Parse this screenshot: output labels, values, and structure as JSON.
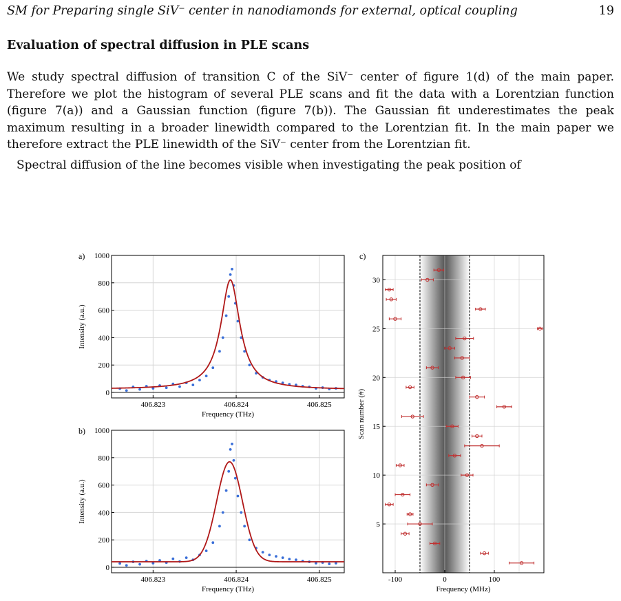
{
  "header": {
    "running_title": "SM for Preparing single SiV⁻ center in nanodiamonds for external, optical coupling",
    "page_number": "19"
  },
  "section_title": "Evaluation of spectral diffusion in PLE scans",
  "paragraphs": [
    "We study spectral diffusion of transition C of the SiV⁻ center of figure 1(d) of the main paper. Therefore we plot the histogram of several PLE scans and fit the data with a Lorentzian function (figure 7(a)) and a Gaussian function (figure 7(b)). The Gaussian fit underestimates the peak maximum resulting in a broader linewidth compared to the Lorentzian fit. In the main paper we therefore extract the PLE linewidth of the SiV⁻ center from the Lorentzian fit.",
    "Spectral diffusion of the line becomes visible when investigating the peak position of"
  ],
  "colors": {
    "data_points": "#3a6fd8",
    "fit_line": "#b01818",
    "markers": "#c03030"
  },
  "chart_data": [
    {
      "panel": "a)",
      "type": "scatter",
      "xlabel": "Frequency (THz)",
      "ylabel": "Intensity (a.u.)",
      "xlim": [
        406.8225,
        406.8253
      ],
      "ylim": [
        -40,
        1000
      ],
      "xticks": [
        "406.823",
        "406.824",
        "406.825"
      ],
      "xtick_values": [
        406.823,
        406.824,
        406.825
      ],
      "yticks": [
        "0",
        "200",
        "400",
        "600",
        "800",
        "1000"
      ],
      "ytick_values": [
        0,
        200,
        400,
        600,
        800,
        1000
      ],
      "fit": {
        "kind": "lorentzian",
        "x0": 406.82393,
        "fwhm": 0.00028,
        "amplitude": 800,
        "offset": 20,
        "slope": 3
      },
      "series": [
        {
          "values": [
            [
              406.8226,
              28
            ],
            [
              406.82268,
              14
            ],
            [
              406.82276,
              40
            ],
            [
              406.82284,
              22
            ],
            [
              406.82292,
              45
            ],
            [
              406.823,
              30
            ],
            [
              406.82308,
              50
            ],
            [
              406.82316,
              34
            ],
            [
              406.82324,
              62
            ],
            [
              406.82332,
              42
            ],
            [
              406.8234,
              70
            ],
            [
              406.82348,
              55
            ],
            [
              406.82356,
              90
            ],
            [
              406.82364,
              120
            ],
            [
              406.82372,
              180
            ],
            [
              406.8238,
              300
            ],
            [
              406.82384,
              400
            ],
            [
              406.82388,
              560
            ],
            [
              406.82391,
              700
            ],
            [
              406.82393,
              860
            ],
            [
              406.82395,
              900
            ],
            [
              406.82397,
              780
            ],
            [
              406.82399,
              650
            ],
            [
              406.82402,
              520
            ],
            [
              406.82406,
              400
            ],
            [
              406.8241,
              300
            ],
            [
              406.82416,
              200
            ],
            [
              406.82424,
              140
            ],
            [
              406.82432,
              110
            ],
            [
              406.8244,
              90
            ],
            [
              406.82448,
              80
            ],
            [
              406.82456,
              70
            ],
            [
              406.82464,
              60
            ],
            [
              406.82472,
              55
            ],
            [
              406.8248,
              45
            ],
            [
              406.82488,
              40
            ],
            [
              406.82496,
              30
            ],
            [
              406.82504,
              35
            ],
            [
              406.82512,
              25
            ],
            [
              406.8252,
              30
            ]
          ]
        }
      ]
    },
    {
      "panel": "b)",
      "type": "scatter",
      "xlabel": "Frequency (THz)",
      "ylabel": "Intensity (a.u.)",
      "xlim": [
        406.8225,
        406.8253
      ],
      "ylim": [
        -40,
        1000
      ],
      "xticks": [
        "406.823",
        "406.824",
        "406.825"
      ],
      "xtick_values": [
        406.823,
        406.824,
        406.825
      ],
      "yticks": [
        "0",
        "200",
        "400",
        "600",
        "800",
        "1000"
      ],
      "ytick_values": [
        0,
        200,
        400,
        600,
        800,
        1000
      ],
      "fit": {
        "kind": "gaussian",
        "x0": 406.82392,
        "sigma": 0.000155,
        "amplitude": 730,
        "offset": 40,
        "slope": 0
      },
      "series": [
        {
          "values": [
            [
              406.8226,
              28
            ],
            [
              406.82268,
              14
            ],
            [
              406.82276,
              40
            ],
            [
              406.82284,
              22
            ],
            [
              406.82292,
              45
            ],
            [
              406.823,
              30
            ],
            [
              406.82308,
              50
            ],
            [
              406.82316,
              34
            ],
            [
              406.82324,
              62
            ],
            [
              406.82332,
              42
            ],
            [
              406.8234,
              70
            ],
            [
              406.82348,
              55
            ],
            [
              406.82356,
              90
            ],
            [
              406.82364,
              120
            ],
            [
              406.82372,
              180
            ],
            [
              406.8238,
              300
            ],
            [
              406.82384,
              400
            ],
            [
              406.82388,
              560
            ],
            [
              406.82391,
              700
            ],
            [
              406.82393,
              860
            ],
            [
              406.82395,
              900
            ],
            [
              406.82397,
              780
            ],
            [
              406.82399,
              650
            ],
            [
              406.82402,
              520
            ],
            [
              406.82406,
              400
            ],
            [
              406.8241,
              300
            ],
            [
              406.82416,
              200
            ],
            [
              406.82424,
              140
            ],
            [
              406.82432,
              110
            ],
            [
              406.8244,
              90
            ],
            [
              406.82448,
              80
            ],
            [
              406.82456,
              70
            ],
            [
              406.82464,
              60
            ],
            [
              406.82472,
              55
            ],
            [
              406.8248,
              45
            ],
            [
              406.82488,
              40
            ],
            [
              406.82496,
              30
            ],
            [
              406.82504,
              35
            ],
            [
              406.82512,
              25
            ],
            [
              406.8252,
              30
            ]
          ]
        }
      ]
    },
    {
      "panel": "c)",
      "type": "scatter",
      "xlabel": "Frequency (MHz)",
      "ylabel": "Scan number (#)",
      "xlim": [
        -125,
        200
      ],
      "ylim": [
        0,
        32.5
      ],
      "xticks": [
        "-100",
        "0",
        "100"
      ],
      "xtick_values": [
        -100,
        0,
        100
      ],
      "yticks": [
        "5",
        "10",
        "15",
        "20",
        "25",
        "30"
      ],
      "ytick_values": [
        5,
        10,
        15,
        20,
        25,
        30
      ],
      "band": {
        "low": -50,
        "high": 50
      },
      "series": [
        {
          "values": [
            {
              "scan": 1,
              "x": 155,
              "err": 25
            },
            {
              "scan": 2,
              "x": 80,
              "err": 8
            },
            {
              "scan": 3,
              "x": -20,
              "err": 10
            },
            {
              "scan": 4,
              "x": -80,
              "err": 8
            },
            {
              "scan": 5,
              "x": -50,
              "err": 25
            },
            {
              "scan": 6,
              "x": -70,
              "err": 6
            },
            {
              "scan": 7,
              "x": -112,
              "err": 8
            },
            {
              "scan": 8,
              "x": -85,
              "err": 15
            },
            {
              "scan": 9,
              "x": -25,
              "err": 12
            },
            {
              "scan": 10,
              "x": 45,
              "err": 12
            },
            {
              "scan": 11,
              "x": -90,
              "err": 8
            },
            {
              "scan": 12,
              "x": 20,
              "err": 12
            },
            {
              "scan": 13,
              "x": 75,
              "err": 35
            },
            {
              "scan": 14,
              "x": 65,
              "err": 10
            },
            {
              "scan": 15,
              "x": 15,
              "err": 12
            },
            {
              "scan": 16,
              "x": -65,
              "err": 22
            },
            {
              "scan": 17,
              "x": 120,
              "err": 15
            },
            {
              "scan": 18,
              "x": 65,
              "err": 15
            },
            {
              "scan": 19,
              "x": -70,
              "err": 8
            },
            {
              "scan": 20,
              "x": 37,
              "err": 15
            },
            {
              "scan": 21,
              "x": -25,
              "err": 12
            },
            {
              "scan": 22,
              "x": 35,
              "err": 15
            },
            {
              "scan": 23,
              "x": 10,
              "err": 10
            },
            {
              "scan": 24,
              "x": 40,
              "err": 18
            },
            {
              "scan": 25,
              "x": 192,
              "err": 5
            },
            {
              "scan": 26,
              "x": -100,
              "err": 12
            },
            {
              "scan": 27,
              "x": 72,
              "err": 10
            },
            {
              "scan": 28,
              "x": -108,
              "err": 10
            },
            {
              "scan": 29,
              "x": -112,
              "err": 8
            },
            {
              "scan": 30,
              "x": -35,
              "err": 12
            },
            {
              "scan": 31,
              "x": -12,
              "err": 10
            }
          ]
        }
      ]
    }
  ]
}
